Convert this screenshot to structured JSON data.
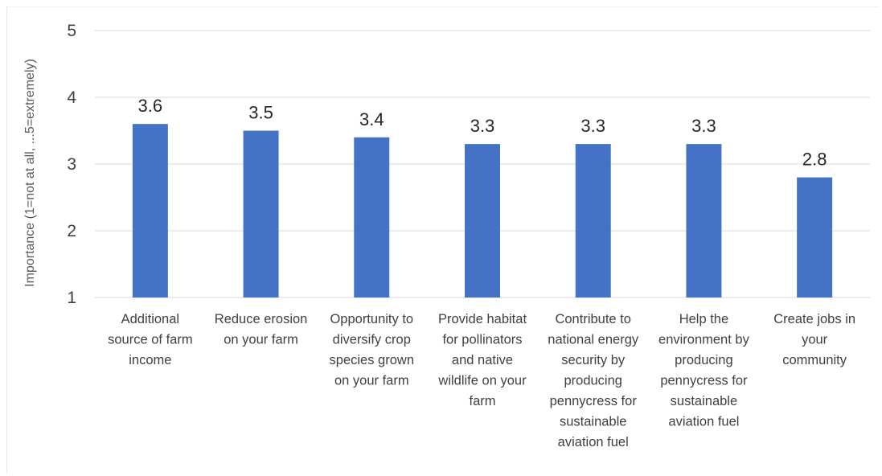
{
  "chart_data": {
    "type": "bar",
    "categories": [
      [
        "Additional",
        "source of farm",
        "income"
      ],
      [
        "Reduce erosion",
        "on your farm"
      ],
      [
        "Opportunity to",
        "diversify crop",
        "species grown",
        "on your farm"
      ],
      [
        "Provide habitat",
        "for pollinators",
        "and native",
        "wildlife on your",
        "farm"
      ],
      [
        "Contribute to",
        "national energy",
        "security by",
        "producing",
        "pennycress for",
        "sustainable",
        "aviation fuel"
      ],
      [
        "Help the",
        "environment by",
        "producing",
        "pennycress for",
        "sustainable",
        "aviation fuel"
      ],
      [
        "Create jobs in",
        "your",
        "community"
      ]
    ],
    "values": [
      3.6,
      3.5,
      3.4,
      3.3,
      3.3,
      3.3,
      2.8
    ],
    "value_labels": [
      "3.6",
      "3.5",
      "3.4",
      "3.3",
      "3.3",
      "3.3",
      "2.8"
    ],
    "ylabel": "Importance (1=not at all, ...5=extremely)",
    "ylim": [
      1,
      5
    ],
    "yticks": [
      "1",
      "2",
      "3",
      "4",
      "5"
    ],
    "grid": true,
    "legend": "none",
    "colors": {
      "bar": "#4472C4",
      "grid": "#d9d9d9"
    }
  }
}
